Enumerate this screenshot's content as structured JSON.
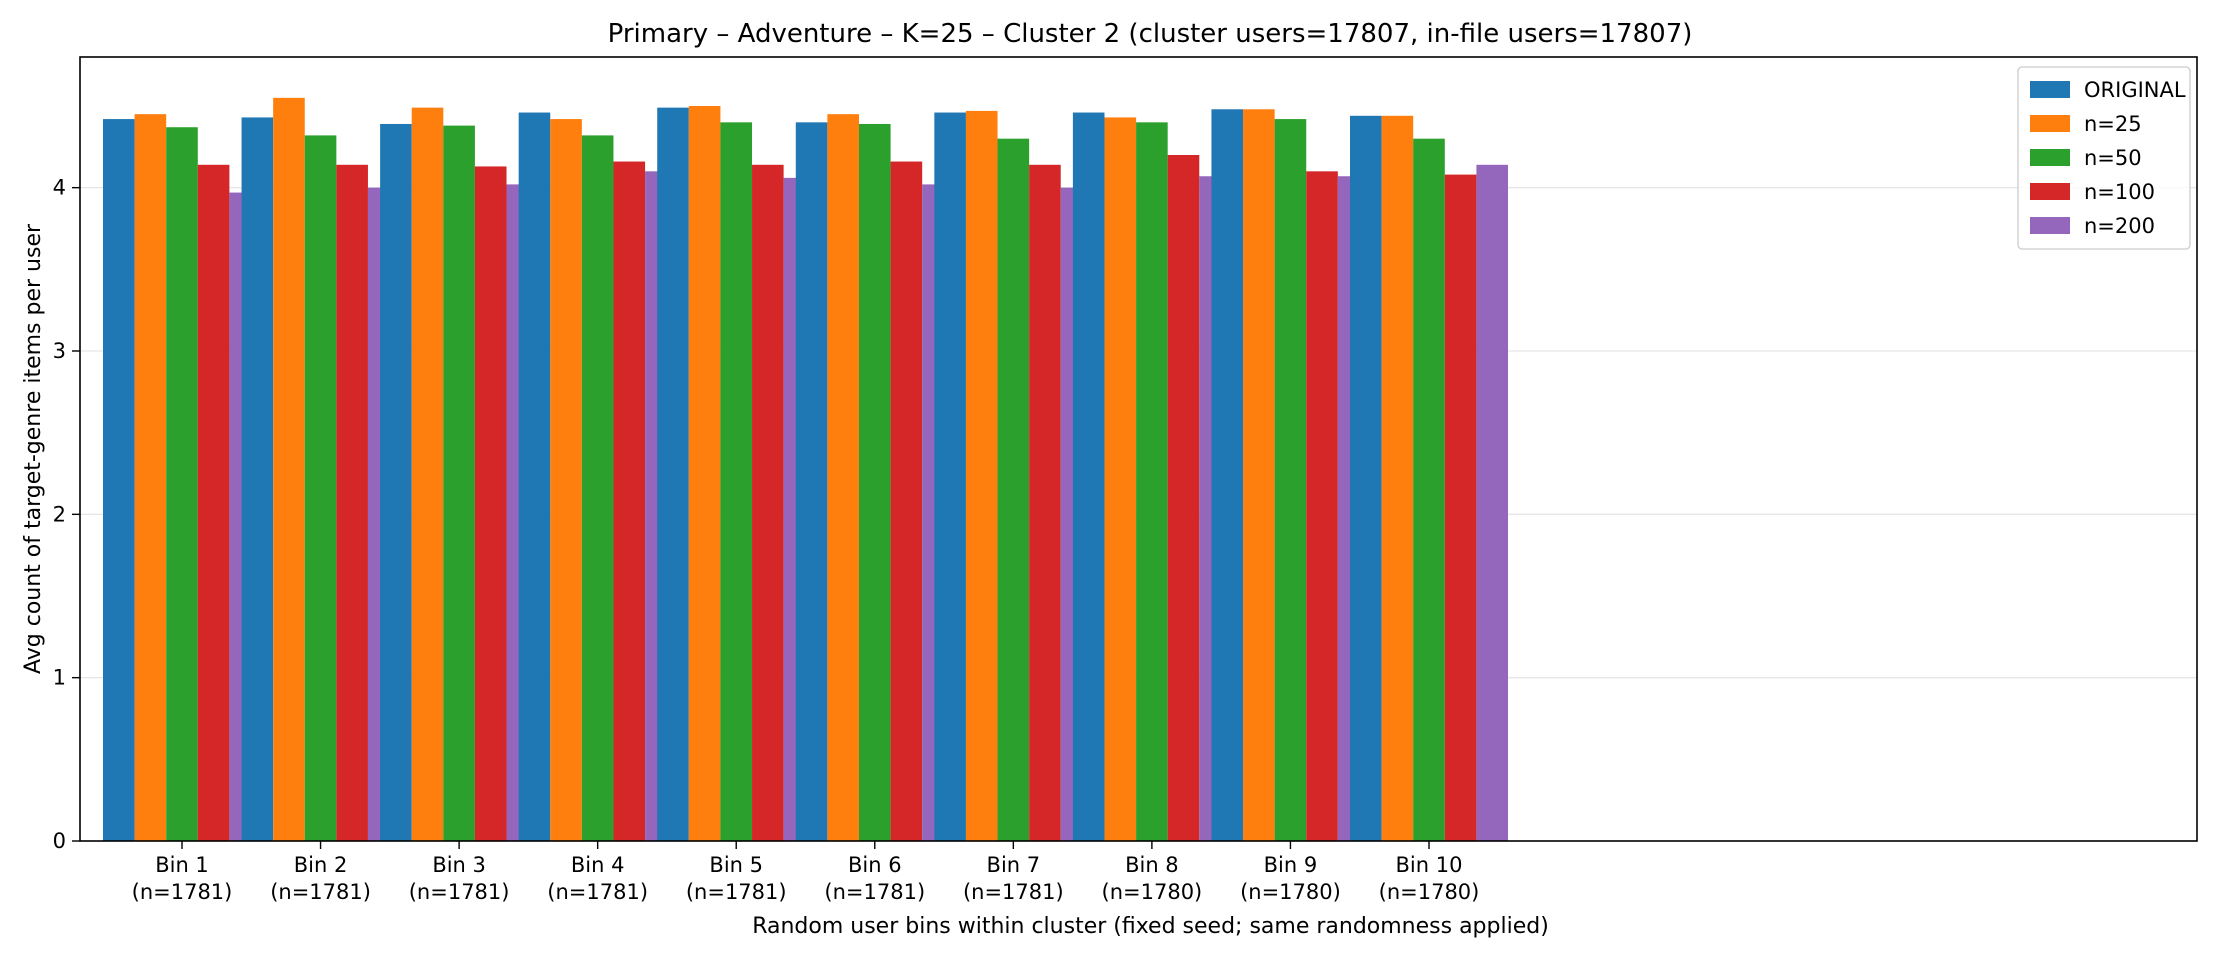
{
  "chart_data": {
    "type": "bar",
    "title": "Primary – Adventure – K=25 – Cluster 2 (cluster users=17807, in-file users=17807)",
    "xlabel": "Random user bins within cluster (fixed seed; same randomness applied)",
    "ylabel": "Avg count of target-genre items per user",
    "ylim": [
      0,
      4.8
    ],
    "yticks": [
      0,
      1,
      2,
      3,
      4
    ],
    "grid": "horizontal",
    "legend_position": "top-right",
    "categories": [
      "Bin 1",
      "Bin 2",
      "Bin 3",
      "Bin 4",
      "Bin 5",
      "Bin 6",
      "Bin 7",
      "Bin 8",
      "Bin 9",
      "Bin 10"
    ],
    "category_sublabels": [
      "(n=1781)",
      "(n=1781)",
      "(n=1781)",
      "(n=1781)",
      "(n=1781)",
      "(n=1781)",
      "(n=1781)",
      "(n=1780)",
      "(n=1780)",
      "(n=1780)"
    ],
    "series": [
      {
        "name": "ORIGINAL",
        "color": "#1f77b4",
        "values": [
          4.42,
          4.43,
          4.39,
          4.46,
          4.49,
          4.4,
          4.46,
          4.46,
          4.48,
          4.44
        ]
      },
      {
        "name": "n=25",
        "color": "#ff7f0e",
        "values": [
          4.45,
          4.55,
          4.49,
          4.42,
          4.5,
          4.45,
          4.47,
          4.43,
          4.48,
          4.44
        ]
      },
      {
        "name": "n=50",
        "color": "#2ca02c",
        "values": [
          4.37,
          4.32,
          4.38,
          4.32,
          4.4,
          4.39,
          4.3,
          4.4,
          4.42,
          4.3
        ]
      },
      {
        "name": "n=100",
        "color": "#d62728",
        "values": [
          4.14,
          4.14,
          4.13,
          4.16,
          4.14,
          4.16,
          4.14,
          4.2,
          4.1,
          4.08
        ]
      },
      {
        "name": "n=200",
        "color": "#9467bd",
        "values": [
          3.97,
          4.0,
          4.02,
          4.1,
          4.06,
          4.02,
          4.0,
          4.07,
          4.07,
          4.14
        ]
      }
    ]
  }
}
